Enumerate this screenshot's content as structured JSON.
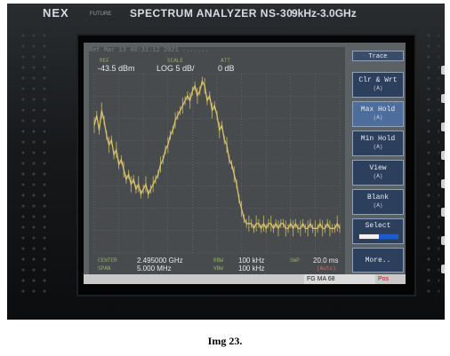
{
  "device": {
    "brand": "NEX",
    "brand_sub": "FUTURE",
    "model": "SPECTRUM ANALYZER NS-30",
    "range": "9kHz-3.0GHz"
  },
  "statusline": "                    Ref Mar 13 00:31:12 2021   .......",
  "header": {
    "ref_label": "REF",
    "scale_label": "SCALE",
    "att_label": "ATT",
    "ref_value": "-43.5 dBm",
    "scale_value": "LOG  5 dB/",
    "att_value": "0 dB"
  },
  "trace": {
    "color": "#d8c36a",
    "x": [
      0,
      1,
      2,
      3,
      4,
      5,
      6,
      7,
      8,
      9,
      10,
      11,
      12,
      13,
      14,
      15,
      16,
      17,
      18,
      19,
      20,
      21,
      22,
      23,
      24,
      25,
      26,
      27,
      28,
      29,
      30,
      31,
      32,
      33,
      34,
      35,
      36,
      37,
      38,
      39,
      40,
      41,
      42,
      43,
      44,
      45,
      46,
      47,
      48,
      49,
      50,
      51,
      52,
      53,
      54,
      55,
      56,
      57,
      58,
      59,
      60,
      61,
      62,
      63,
      64,
      65,
      66,
      67,
      68,
      69,
      70,
      71,
      72,
      73,
      74,
      75,
      76,
      77,
      78,
      79,
      80,
      81,
      82,
      83,
      84,
      85,
      86,
      87,
      88,
      89,
      90,
      91,
      92,
      93,
      94,
      95,
      96,
      97,
      98,
      99,
      100
    ],
    "y": [
      -54,
      -52,
      -55,
      -51,
      -53,
      -56,
      -58,
      -57,
      -60,
      -59,
      -62,
      -61,
      -63,
      -65,
      -64,
      -66,
      -65,
      -67,
      -66,
      -68,
      -67,
      -66,
      -68,
      -67,
      -66,
      -65,
      -64,
      -62,
      -61,
      -59,
      -58,
      -56,
      -55,
      -53,
      -52,
      -51,
      -50,
      -49,
      -48,
      -49,
      -47,
      -46,
      -48,
      -47,
      -45,
      -46,
      -49,
      -48,
      -51,
      -50,
      -52,
      -55,
      -54,
      -57,
      -58,
      -61,
      -62,
      -64,
      -66,
      -69,
      -71,
      -73,
      -74,
      -74,
      -74,
      -75,
      -74,
      -74,
      -75,
      -74,
      -75,
      -74,
      -74,
      -75,
      -74,
      -75,
      -74,
      -74,
      -75,
      -75,
      -74,
      -75,
      -74,
      -75,
      -75,
      -74,
      -75,
      -75,
      -74,
      -75,
      -75,
      -75,
      -74,
      -75,
      -75,
      -74,
      -75,
      -75,
      -75,
      -74,
      -75
    ],
    "ylim": [
      -80,
      -43.5
    ]
  },
  "softkeys": {
    "title": "Trace",
    "items": [
      {
        "label": "Clr & Wrt",
        "sub": "(A)",
        "active": false
      },
      {
        "label": "Max Hold",
        "sub": "(A)",
        "active": true
      },
      {
        "label": "Min Hold",
        "sub": "(A)",
        "active": false
      },
      {
        "label": "View",
        "sub": "(A)",
        "active": false
      },
      {
        "label": "Blank",
        "sub": "(A)",
        "active": false
      },
      {
        "label": "Select",
        "sub": "B   A",
        "active": false
      },
      {
        "label": "More..",
        "sub": "",
        "active": false
      }
    ]
  },
  "bottom": {
    "center_label": "CENTER",
    "center_value": "2.495000 GHz",
    "span_label": "SPAN",
    "span_value": "5.000 MHz",
    "rbw_label": "RBW",
    "rbw_value": "100 kHz",
    "vbw_label": "VBW",
    "vbw_value": "100 kHz",
    "swp_label": "SWP",
    "swp_value": "20.0 ms",
    "swp_mode": "(Auto)"
  },
  "statusbar": {
    "left": "",
    "mid": "FG  MA 68",
    "right": "Pos"
  },
  "caption": "Img 23."
}
